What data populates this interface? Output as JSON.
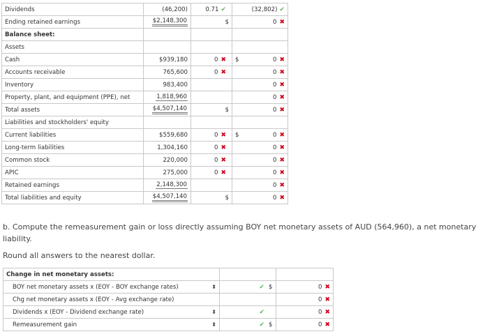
{
  "statement_rows": [
    {
      "label": "Dividends",
      "amount": "(46,200)",
      "amount_style": "",
      "c3_dollar": "",
      "c3_value": "0.71",
      "c3_mark": "check",
      "c4_dollar": "",
      "c4_value": "(32,802)",
      "c4_mark": "check",
      "bold": false
    },
    {
      "label": "Ending retained earnings",
      "amount": "$2,148,300",
      "amount_style": "dul",
      "c3_dollar": "$",
      "c3_value": "",
      "c3_mark": "",
      "c4_dollar": "",
      "c4_value": "0",
      "c4_mark": "x",
      "bold": false
    },
    {
      "label": "Balance sheet:",
      "amount": "",
      "amount_style": "",
      "c3_dollar": "",
      "c3_value": "",
      "c3_mark": "",
      "c4_dollar": "",
      "c4_value": "",
      "c4_mark": "",
      "bold": true
    },
    {
      "label": "Assets",
      "amount": "",
      "amount_style": "",
      "c3_dollar": "",
      "c3_value": "",
      "c3_mark": "",
      "c4_dollar": "",
      "c4_value": "",
      "c4_mark": "",
      "bold": false
    },
    {
      "label": "Cash",
      "amount": "$939,180",
      "amount_style": "",
      "c3_dollar": "",
      "c3_value": "0",
      "c3_mark": "x",
      "c4_dollar": "$",
      "c4_value": "0",
      "c4_mark": "x",
      "bold": false
    },
    {
      "label": "Accounts receivable",
      "amount": "765,600",
      "amount_style": "",
      "c3_dollar": "",
      "c3_value": "0",
      "c3_mark": "x",
      "c4_dollar": "",
      "c4_value": "0",
      "c4_mark": "x",
      "bold": false
    },
    {
      "label": "Inventory",
      "amount": "983,400",
      "amount_style": "",
      "c3_dollar": "",
      "c3_value": "",
      "c3_mark": "",
      "c4_dollar": "",
      "c4_value": "0",
      "c4_mark": "x",
      "bold": false
    },
    {
      "label": "Property, plant, and equipment (PPE), net",
      "amount": "1,818,960",
      "amount_style": "ul",
      "c3_dollar": "",
      "c3_value": "",
      "c3_mark": "",
      "c4_dollar": "",
      "c4_value": "0",
      "c4_mark": "x",
      "bold": false
    },
    {
      "label": "Total assets",
      "amount": "$4,507,140",
      "amount_style": "dul",
      "c3_dollar": "$",
      "c3_value": "",
      "c3_mark": "",
      "c4_dollar": "",
      "c4_value": "0",
      "c4_mark": "x",
      "bold": false
    },
    {
      "label": "Liabilities and stockholders' equity",
      "amount": "",
      "amount_style": "",
      "c3_dollar": "",
      "c3_value": "",
      "c3_mark": "",
      "c4_dollar": "",
      "c4_value": "",
      "c4_mark": "",
      "bold": false
    },
    {
      "label": "Current liabilities",
      "amount": "$559,680",
      "amount_style": "",
      "c3_dollar": "",
      "c3_value": "0",
      "c3_mark": "x",
      "c4_dollar": "$",
      "c4_value": "0",
      "c4_mark": "x",
      "bold": false
    },
    {
      "label": "Long-term liabilities",
      "amount": "1,304,160",
      "amount_style": "",
      "c3_dollar": "",
      "c3_value": "0",
      "c3_mark": "x",
      "c4_dollar": "",
      "c4_value": "0",
      "c4_mark": "x",
      "bold": false
    },
    {
      "label": "Common stock",
      "amount": "220,000",
      "amount_style": "",
      "c3_dollar": "",
      "c3_value": "0",
      "c3_mark": "x",
      "c4_dollar": "",
      "c4_value": "0",
      "c4_mark": "x",
      "bold": false
    },
    {
      "label": "APIC",
      "amount": "275,000",
      "amount_style": "",
      "c3_dollar": "",
      "c3_value": "0",
      "c3_mark": "x",
      "c4_dollar": "",
      "c4_value": "0",
      "c4_mark": "x",
      "bold": false
    },
    {
      "label": "Retained earnings",
      "amount": "2,148,300",
      "amount_style": "ul",
      "c3_dollar": "",
      "c3_value": "",
      "c3_mark": "",
      "c4_dollar": "",
      "c4_value": "0",
      "c4_mark": "x",
      "bold": false
    },
    {
      "label": "Total liabilities and equity",
      "amount": "$4,507,140",
      "amount_style": "dul",
      "c3_dollar": "$",
      "c3_value": "",
      "c3_mark": "",
      "c4_dollar": "",
      "c4_value": "0",
      "c4_mark": "x",
      "bold": false
    }
  ],
  "instructions": {
    "part_b": "b. Compute the remeasurement gain or loss directly assuming BOY net monetary assets of AUD (564,960), a net monetary liability.",
    "round": "Round all answers to the nearest dollar."
  },
  "monetary": {
    "header": "Change in net monetary assets:",
    "rows": [
      {
        "label": "BOY net monetary assets x (EOY - BOY exchange rates)",
        "has_select": true,
        "check": true,
        "dollar": "$",
        "value": "0",
        "mark": "x"
      },
      {
        "label": "Chg net monetary assets x (EOY - Avg exchange rate)",
        "has_select": false,
        "check": false,
        "dollar": "",
        "value": "0",
        "mark": "x"
      },
      {
        "label": "Dividends x (EOY - Dividend exchange rate)",
        "has_select": true,
        "check": true,
        "dollar": "",
        "value": "0",
        "mark": "x"
      },
      {
        "label": "Remeasurement gain",
        "has_select": true,
        "check": true,
        "dollar": "$",
        "value": "0",
        "mark": "x"
      }
    ]
  },
  "icons": {
    "check": "check-icon",
    "x": "x-mark-icon",
    "select": "select-arrows-icon"
  },
  "colors": {
    "check": "#5cb85c",
    "x": "#d0021b"
  }
}
